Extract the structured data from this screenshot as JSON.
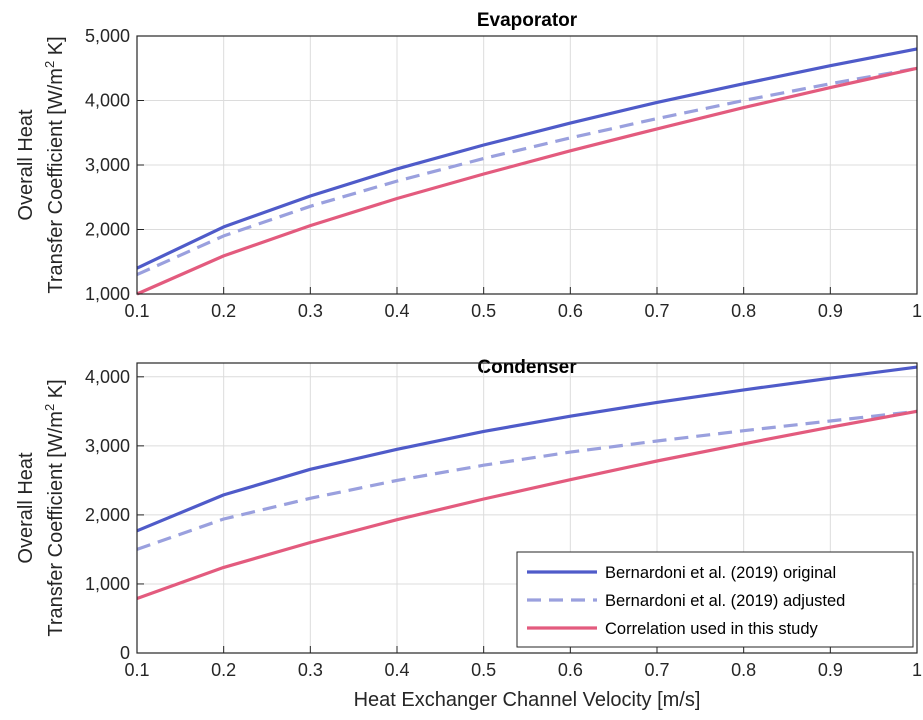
{
  "chart_data": [
    {
      "type": "line",
      "title": "Evaporator",
      "xlabel": "",
      "ylabel_line1": "Overall Heat",
      "ylabel_line2_main": "Transfer Coefficient [W/m",
      "ylabel_sup": "2",
      "ylabel_line2_end": " K]",
      "xlim": [
        0.1,
        1
      ],
      "ylim": [
        1000,
        5000
      ],
      "grid": true,
      "x_ticks": [
        "0.1",
        "0.2",
        "0.3",
        "0.4",
        "0.5",
        "0.6",
        "0.7",
        "0.8",
        "0.9",
        "1"
      ],
      "y_ticks": [
        {
          "value": 1000,
          "label": "1,000"
        },
        {
          "value": 2000,
          "label": "2,000"
        },
        {
          "value": 3000,
          "label": "3,000"
        },
        {
          "value": 4000,
          "label": "4,000"
        },
        {
          "value": 5000,
          "label": "5,000"
        }
      ],
      "x": [
        0.1,
        0.2,
        0.3,
        0.4,
        0.5,
        0.6,
        0.7,
        0.8,
        0.9,
        1.0
      ],
      "series": [
        {
          "name": "Bernardoni et al. (2019) original",
          "color": "#4f5bc9",
          "dash": "solid",
          "values": [
            1400,
            2040,
            2520,
            2940,
            3310,
            3650,
            3970,
            4260,
            4540,
            4800
          ]
        },
        {
          "name": "Bernardoni et al. (2019) adjusted",
          "color": "#9aa0de",
          "dash": "dashed",
          "values": [
            1300,
            1900,
            2360,
            2750,
            3100,
            3420,
            3720,
            4000,
            4260,
            4500
          ]
        },
        {
          "name": "Correlation used in this study",
          "color": "#e35b7e",
          "dash": "solid",
          "values": [
            1000,
            1590,
            2060,
            2480,
            2860,
            3220,
            3560,
            3890,
            4200,
            4500
          ]
        }
      ]
    },
    {
      "type": "line",
      "title": "Condenser",
      "xlabel": "Heat Exchanger Channel Velocity [m/s]",
      "ylabel_line1": "Overall Heat",
      "ylabel_line2_main": "Transfer Coefficient [W/m",
      "ylabel_sup": "2",
      "ylabel_line2_end": " K]",
      "xlim": [
        0.1,
        1
      ],
      "ylim": [
        0,
        4200
      ],
      "grid": true,
      "legend_position": "bottom-right",
      "x_ticks": [
        "0.1",
        "0.2",
        "0.3",
        "0.4",
        "0.5",
        "0.6",
        "0.7",
        "0.8",
        "0.9",
        "1"
      ],
      "y_ticks": [
        {
          "value": 0,
          "label": "0"
        },
        {
          "value": 1000,
          "label": "1,000"
        },
        {
          "value": 2000,
          "label": "2,000"
        },
        {
          "value": 3000,
          "label": "3,000"
        },
        {
          "value": 4000,
          "label": "4,000"
        }
      ],
      "x": [
        0.1,
        0.2,
        0.3,
        0.4,
        0.5,
        0.6,
        0.7,
        0.8,
        0.9,
        1.0
      ],
      "series": [
        {
          "name": "Bernardoni et al. (2019) original",
          "color": "#4f5bc9",
          "dash": "solid",
          "values": [
            1770,
            2290,
            2660,
            2950,
            3210,
            3430,
            3630,
            3810,
            3980,
            4140
          ]
        },
        {
          "name": "Bernardoni et al. (2019) adjusted",
          "color": "#9aa0de",
          "dash": "dashed",
          "values": [
            1500,
            1940,
            2240,
            2500,
            2720,
            2910,
            3070,
            3220,
            3360,
            3500
          ]
        },
        {
          "name": "Correlation used in this study",
          "color": "#e35b7e",
          "dash": "solid",
          "values": [
            790,
            1240,
            1600,
            1930,
            2230,
            2510,
            2780,
            3030,
            3270,
            3500
          ]
        }
      ]
    }
  ]
}
